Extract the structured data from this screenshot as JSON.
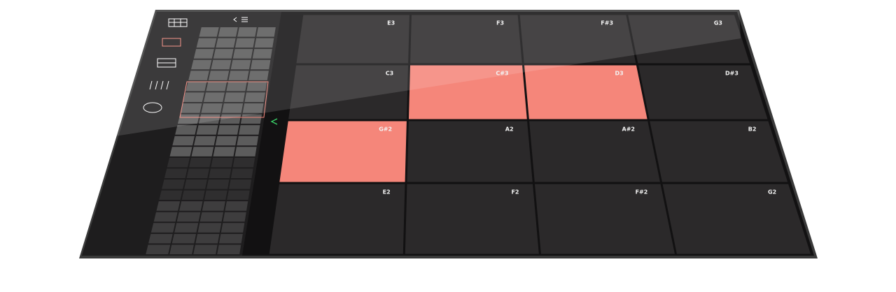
{
  "pads": {
    "rows": [
      [
        {
          "label": "E3",
          "active": false
        },
        {
          "label": "F3",
          "active": false
        },
        {
          "label": "F#3",
          "active": false
        },
        {
          "label": "G3",
          "active": false
        }
      ],
      [
        {
          "label": "C3",
          "active": false
        },
        {
          "label": "C#3",
          "active": true
        },
        {
          "label": "D3",
          "active": true
        },
        {
          "label": "D#3",
          "active": false
        }
      ],
      [
        {
          "label": "G#2",
          "active": true
        },
        {
          "label": "A2",
          "active": false
        },
        {
          "label": "A#2",
          "active": false
        },
        {
          "label": "B2",
          "active": false
        }
      ],
      [
        {
          "label": "E2",
          "active": false
        },
        {
          "label": "F2",
          "active": false
        },
        {
          "label": "F#2",
          "active": false
        },
        {
          "label": "G2",
          "active": false
        }
      ]
    ]
  }
}
